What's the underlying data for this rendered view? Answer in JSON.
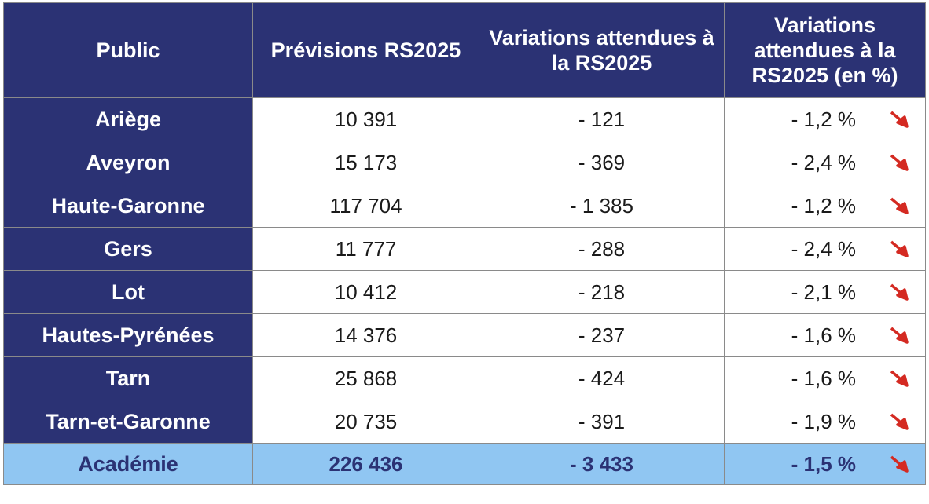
{
  "colors": {
    "header_bg": "#2b3274",
    "total_bg": "#90c6f2",
    "arrow": "#d42a22"
  },
  "table": {
    "headers": [
      "Public",
      "Prévisions RS2025",
      "Variations attendues à la RS2025",
      "Variations attendues à la RS2025 (en %)"
    ],
    "rows": [
      {
        "label": "Ariège",
        "prevision": "10 391",
        "variation": "- 121",
        "pct": "- 1,2 %",
        "icon": "down-right-arrow-icon"
      },
      {
        "label": "Aveyron",
        "prevision": "15 173",
        "variation": "- 369",
        "pct": "- 2,4 %",
        "icon": "down-right-arrow-icon"
      },
      {
        "label": "Haute-Garonne",
        "prevision": "117 704",
        "variation": "- 1 385",
        "pct": "- 1,2 %",
        "icon": "down-right-arrow-icon"
      },
      {
        "label": "Gers",
        "prevision": "11 777",
        "variation": "- 288",
        "pct": "- 2,4 %",
        "icon": "down-right-arrow-icon"
      },
      {
        "label": "Lot",
        "prevision": "10 412",
        "variation": "- 218",
        "pct": "- 2,1 %",
        "icon": "down-right-arrow-icon"
      },
      {
        "label": "Hautes-Pyrénées",
        "prevision": "14 376",
        "variation": "- 237",
        "pct": "- 1,6 %",
        "icon": "down-right-arrow-icon"
      },
      {
        "label": "Tarn",
        "prevision": "25 868",
        "variation": "- 424",
        "pct": "- 1,6 %",
        "icon": "down-right-arrow-icon"
      },
      {
        "label": "Tarn-et-Garonne",
        "prevision": "20 735",
        "variation": "- 391",
        "pct": "- 1,9 %",
        "icon": "down-right-arrow-icon"
      }
    ],
    "total": {
      "label": "Académie",
      "prevision": "226 436",
      "variation": "- 3 433",
      "pct": "- 1,5 %",
      "icon": "down-right-arrow-icon"
    }
  }
}
